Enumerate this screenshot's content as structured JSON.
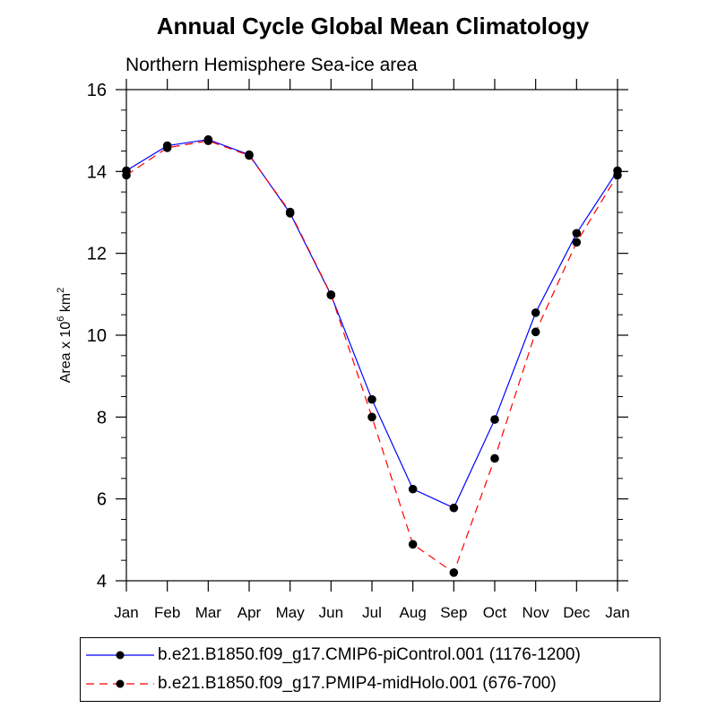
{
  "chart_data": {
    "type": "line",
    "title": "Annual Cycle Global Mean Climatology",
    "subtitle": "Northern Hemisphere Sea-ice area",
    "ylabel": "Area x 10",
    "ylabel_sup1": "6",
    "ylabel_unit": " km",
    "ylabel_sup2": "2",
    "xlabel": "",
    "categories": [
      "Jan",
      "Feb",
      "Mar",
      "Apr",
      "May",
      "Jun",
      "Jul",
      "Aug",
      "Sep",
      "Oct",
      "Nov",
      "Dec",
      "Jan"
    ],
    "ylim": [
      4,
      16
    ],
    "yticks": [
      4,
      6,
      8,
      10,
      12,
      14,
      16
    ],
    "grid": false,
    "legend_position": "bottom",
    "series": [
      {
        "name": "b.e21.B1850.f09_g17.CMIP6-piControl.001 (1176-1200)",
        "color": "#0000ff",
        "dash": "solid",
        "values": [
          14.02,
          14.63,
          14.78,
          14.41,
          12.98,
          10.98,
          8.43,
          6.24,
          5.78,
          7.94,
          10.55,
          12.49,
          14.02
        ]
      },
      {
        "name": "b.e21.B1850.f09_g17.PMIP4-midHolo.001 (676-700)",
        "color": "#ff0000",
        "dash": "dashed",
        "values": [
          13.91,
          14.58,
          14.75,
          14.39,
          13.01,
          10.99,
          8.0,
          4.89,
          4.2,
          6.99,
          10.08,
          12.27,
          13.91
        ]
      }
    ]
  }
}
